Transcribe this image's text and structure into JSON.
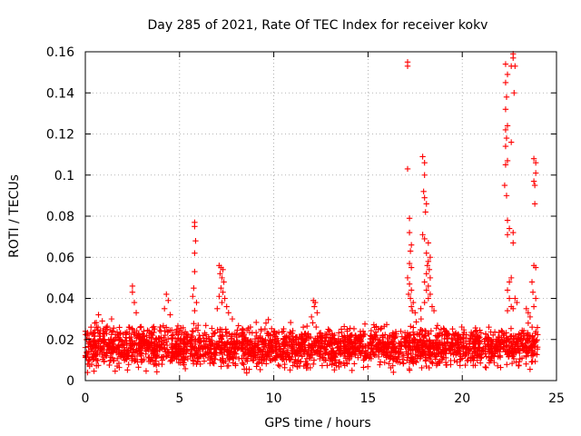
{
  "chart_data": {
    "type": "scatter",
    "title": "Day 285 of 2021, Rate Of TEC Index for receiver kokv",
    "xlabel": "GPS time / hours",
    "ylabel": "ROTI / TECUs",
    "xlim": [
      0,
      25
    ],
    "ylim": [
      0,
      0.16
    ],
    "x_ticks": [
      0,
      5,
      10,
      15,
      20,
      25
    ],
    "x_tick_labels": [
      "0",
      "5",
      "10",
      "15",
      "20",
      "25"
    ],
    "y_ticks": [
      0,
      0.02,
      0.04,
      0.06,
      0.08,
      0.1,
      0.12,
      0.14,
      0.16
    ],
    "y_tick_labels": [
      "0",
      "0.02",
      "0.04",
      "0.06",
      "0.08",
      "0.1",
      "0.12",
      "0.14",
      "0.16"
    ],
    "grid": true,
    "marker": "plus",
    "color": "#ff0000",
    "series": [
      {
        "name": "ROTI",
        "baseline_band": {
          "x_range": [
            0,
            24
          ],
          "y_min": 0.003,
          "y_max": 0.03,
          "typical": 0.014
        },
        "points": [
          [
            0.1,
            0.022
          ],
          [
            0.3,
            0.026
          ],
          [
            0.5,
            0.028
          ],
          [
            0.7,
            0.032
          ],
          [
            0.9,
            0.029
          ],
          [
            1.1,
            0.025
          ],
          [
            2.5,
            0.046
          ],
          [
            2.5,
            0.043
          ],
          [
            2.6,
            0.038
          ],
          [
            2.7,
            0.033
          ],
          [
            4.3,
            0.042
          ],
          [
            4.4,
            0.039
          ],
          [
            4.2,
            0.035
          ],
          [
            4.5,
            0.032
          ],
          [
            5.8,
            0.077
          ],
          [
            5.8,
            0.075
          ],
          [
            5.85,
            0.068
          ],
          [
            5.8,
            0.062
          ],
          [
            5.8,
            0.053
          ],
          [
            5.75,
            0.045
          ],
          [
            5.7,
            0.041
          ],
          [
            5.9,
            0.038
          ],
          [
            5.8,
            0.034
          ],
          [
            7.1,
            0.056
          ],
          [
            7.2,
            0.055
          ],
          [
            7.3,
            0.054
          ],
          [
            7.15,
            0.052
          ],
          [
            7.25,
            0.05
          ],
          [
            7.35,
            0.048
          ],
          [
            7.2,
            0.045
          ],
          [
            7.3,
            0.043
          ],
          [
            7.1,
            0.041
          ],
          [
            7.4,
            0.04
          ],
          [
            7.25,
            0.038
          ],
          [
            7.5,
            0.036
          ],
          [
            7.0,
            0.035
          ],
          [
            7.6,
            0.033
          ],
          [
            7.8,
            0.03
          ],
          [
            12.1,
            0.039
          ],
          [
            12.2,
            0.038
          ],
          [
            12.15,
            0.036
          ],
          [
            12.3,
            0.033
          ],
          [
            12.0,
            0.031
          ],
          [
            17.1,
            0.155
          ],
          [
            17.1,
            0.153
          ],
          [
            17.1,
            0.103
          ],
          [
            17.2,
            0.079
          ],
          [
            17.2,
            0.072
          ],
          [
            17.3,
            0.066
          ],
          [
            17.25,
            0.063
          ],
          [
            17.2,
            0.057
          ],
          [
            17.3,
            0.055
          ],
          [
            17.1,
            0.05
          ],
          [
            17.2,
            0.047
          ],
          [
            17.3,
            0.044
          ],
          [
            17.15,
            0.042
          ],
          [
            17.25,
            0.04
          ],
          [
            17.4,
            0.038
          ],
          [
            17.3,
            0.036
          ],
          [
            17.35,
            0.034
          ],
          [
            17.5,
            0.033
          ],
          [
            17.9,
            0.109
          ],
          [
            18.0,
            0.106
          ],
          [
            18.0,
            0.1
          ],
          [
            17.95,
            0.092
          ],
          [
            18.0,
            0.089
          ],
          [
            18.1,
            0.086
          ],
          [
            18.05,
            0.082
          ],
          [
            17.9,
            0.071
          ],
          [
            18.0,
            0.069
          ],
          [
            18.2,
            0.067
          ],
          [
            18.1,
            0.062
          ],
          [
            18.3,
            0.06
          ],
          [
            18.2,
            0.058
          ],
          [
            18.15,
            0.056
          ],
          [
            18.25,
            0.054
          ],
          [
            18.1,
            0.052
          ],
          [
            18.3,
            0.05
          ],
          [
            18.0,
            0.048
          ],
          [
            18.2,
            0.046
          ],
          [
            18.1,
            0.044
          ],
          [
            18.3,
            0.042
          ],
          [
            18.2,
            0.04
          ],
          [
            18.0,
            0.038
          ],
          [
            18.4,
            0.036
          ],
          [
            18.5,
            0.034
          ],
          [
            17.8,
            0.035
          ],
          [
            22.3,
            0.154
          ],
          [
            22.4,
            0.149
          ],
          [
            22.3,
            0.145
          ],
          [
            22.35,
            0.138
          ],
          [
            22.3,
            0.132
          ],
          [
            22.4,
            0.124
          ],
          [
            22.3,
            0.122
          ],
          [
            22.35,
            0.118
          ],
          [
            22.3,
            0.114
          ],
          [
            22.4,
            0.107
          ],
          [
            22.3,
            0.105
          ],
          [
            22.25,
            0.095
          ],
          [
            22.35,
            0.09
          ],
          [
            22.4,
            0.078
          ],
          [
            22.5,
            0.074
          ],
          [
            22.4,
            0.071
          ],
          [
            22.6,
            0.05
          ],
          [
            22.5,
            0.048
          ],
          [
            22.4,
            0.044
          ],
          [
            22.5,
            0.04
          ],
          [
            22.6,
            0.036
          ],
          [
            22.4,
            0.034
          ],
          [
            22.7,
            0.159
          ],
          [
            22.7,
            0.157
          ],
          [
            22.6,
            0.153
          ],
          [
            22.8,
            0.153
          ],
          [
            22.75,
            0.14
          ],
          [
            22.6,
            0.116
          ],
          [
            22.7,
            0.072
          ],
          [
            22.7,
            0.067
          ],
          [
            22.8,
            0.04
          ],
          [
            22.9,
            0.038
          ],
          [
            22.7,
            0.035
          ],
          [
            23.4,
            0.035
          ],
          [
            23.5,
            0.033
          ],
          [
            23.6,
            0.031
          ],
          [
            23.5,
            0.028
          ],
          [
            23.8,
            0.108
          ],
          [
            23.9,
            0.106
          ],
          [
            23.9,
            0.101
          ],
          [
            23.8,
            0.097
          ],
          [
            23.85,
            0.095
          ],
          [
            23.85,
            0.086
          ],
          [
            23.8,
            0.056
          ],
          [
            23.9,
            0.055
          ],
          [
            23.7,
            0.048
          ],
          [
            23.75,
            0.043
          ],
          [
            23.9,
            0.04
          ],
          [
            23.8,
            0.036
          ]
        ]
      }
    ]
  }
}
